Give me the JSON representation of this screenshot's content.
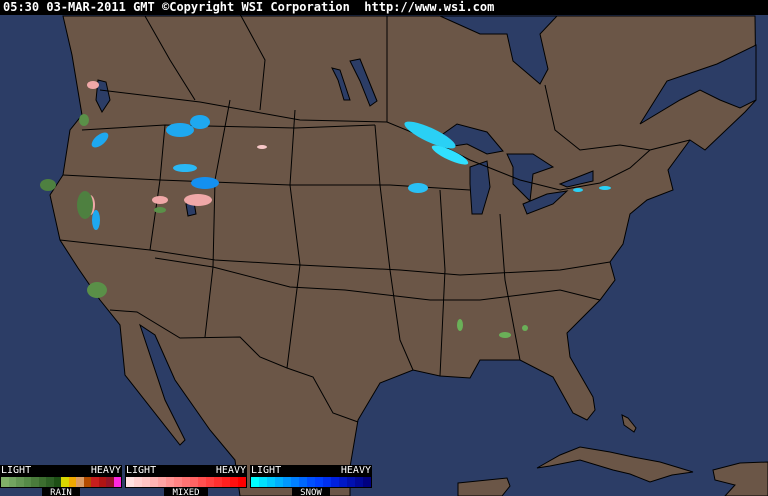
{
  "header": {
    "time": "05:30",
    "date": "03-MAR-2011",
    "zone": "GMT",
    "copyright": "©Copyright WSI Corporation",
    "url": "http://www.wsi.com"
  },
  "colors": {
    "ocean": "#2c3d66",
    "land": "#6b5647",
    "border": "#000000"
  },
  "legend": [
    {
      "label": "RAIN",
      "light": "LIGHT",
      "heavy": "HEAVY",
      "swatches": [
        "#80b068",
        "#72a460",
        "#649654",
        "#568a48",
        "#4a7c3c",
        "#3c6e30",
        "#2e6026",
        "#1e5016",
        "#d8d800",
        "#f0a800",
        "#dc9c64",
        "#b44c00",
        "#c81e1e",
        "#b01414",
        "#961428",
        "#ff28e0"
      ]
    },
    {
      "label": "MIXED",
      "light": "LIGHT",
      "heavy": "HEAVY",
      "swatches": [
        "#ffe0e0",
        "#ffd0d0",
        "#ffc4c4",
        "#ffb4b4",
        "#ffa4a4",
        "#ff9494",
        "#ff8484",
        "#ff7474",
        "#ff6464",
        "#ff5050",
        "#ff4040",
        "#ff3030",
        "#ff2020",
        "#ff1010",
        "#ff0000"
      ]
    },
    {
      "label": "SNOW",
      "light": "LIGHT",
      "heavy": "HEAVY",
      "swatches": [
        "#00ffff",
        "#00e0ff",
        "#00c8ff",
        "#00b0ff",
        "#0098ff",
        "#0080ff",
        "#0068ff",
        "#0050ff",
        "#0040ff",
        "#0030f0",
        "#0020e0",
        "#0018c8",
        "#0010b0",
        "#000898",
        "#000080"
      ]
    }
  ]
}
